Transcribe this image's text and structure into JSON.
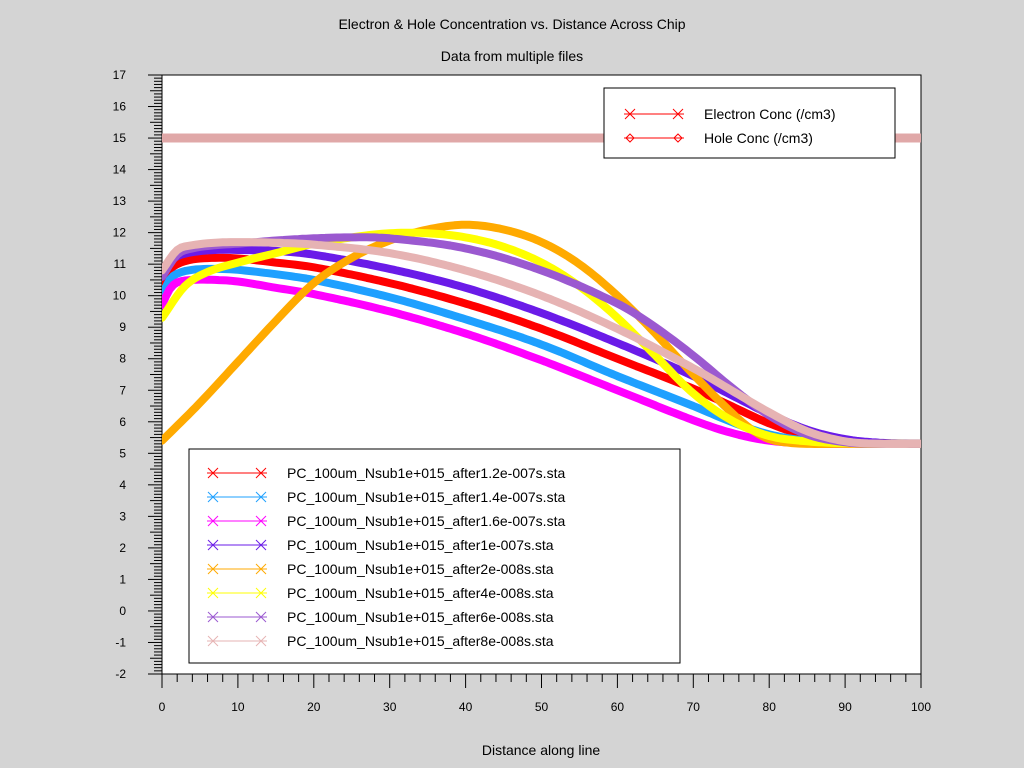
{
  "chart_data": {
    "type": "line",
    "title": "Electron & Hole Concentration vs. Distance Across Chip",
    "subtitle": "Data from multiple files",
    "xlabel": "Distance along line",
    "ylabel": "",
    "xlim": [
      0,
      100
    ],
    "ylim": [
      -2,
      17
    ],
    "x_ticks": [
      "0",
      "10",
      "20",
      "30",
      "40",
      "50",
      "60",
      "70",
      "80",
      "90",
      "100"
    ],
    "y_ticks": [
      "-2",
      "-1",
      "0",
      "1",
      "2",
      "3",
      "4",
      "5",
      "6",
      "7",
      "8",
      "9",
      "10",
      "11",
      "12",
      "13",
      "14",
      "15",
      "16",
      "17"
    ],
    "quantity_legend": [
      {
        "label": "Electron Conc (/cm3)",
        "color": "#ff0000",
        "marker": "x"
      },
      {
        "label": "Hole Conc (/cm3)",
        "color": "#ff0000",
        "marker": "diamond"
      }
    ],
    "hole_conc": {
      "name": "Hole Conc (/cm3)",
      "color": "#e0a8a8",
      "x": [
        0,
        100
      ],
      "y": [
        15,
        15
      ]
    },
    "series": [
      {
        "name": "PC_100um_Nsub1e+015_after1.2e-007s.sta",
        "color": "#ff0000",
        "x": [
          0,
          1,
          2,
          4,
          7,
          10,
          15,
          20,
          30,
          40,
          50,
          60,
          70,
          75,
          80,
          85,
          90,
          95,
          100
        ],
        "y": [
          10.3,
          10.8,
          11.0,
          11.15,
          11.2,
          11.18,
          11.05,
          10.9,
          10.4,
          9.75,
          8.95,
          8.0,
          7.05,
          6.5,
          5.95,
          5.55,
          5.35,
          5.3,
          5.3
        ]
      },
      {
        "name": "PC_100um_Nsub1e+015_after1.4e-007s.sta",
        "color": "#1ea0ff",
        "x": [
          0,
          1,
          2,
          4,
          7,
          10,
          15,
          20,
          30,
          40,
          50,
          60,
          70,
          75,
          80,
          85,
          90,
          95,
          100
        ],
        "y": [
          10.0,
          10.5,
          10.7,
          10.82,
          10.85,
          10.82,
          10.68,
          10.5,
          9.95,
          9.25,
          8.45,
          7.45,
          6.5,
          6.0,
          5.6,
          5.4,
          5.32,
          5.3,
          5.3
        ]
      },
      {
        "name": "PC_100um_Nsub1e+015_after1.6e-007s.sta",
        "color": "#ff00ff",
        "x": [
          0,
          1,
          2,
          4,
          7,
          10,
          15,
          20,
          30,
          40,
          50,
          60,
          70,
          75,
          80,
          85,
          90,
          95,
          100
        ],
        "y": [
          9.7,
          10.2,
          10.42,
          10.5,
          10.5,
          10.45,
          10.25,
          10.05,
          9.5,
          8.8,
          7.95,
          7.0,
          6.05,
          5.65,
          5.4,
          5.32,
          5.3,
          5.3,
          5.3
        ]
      },
      {
        "name": "PC_100um_Nsub1e+015_after1e-007s.sta",
        "color": "#6a1be8",
        "x": [
          0,
          1,
          2,
          4,
          7,
          10,
          15,
          20,
          30,
          40,
          50,
          60,
          70,
          75,
          80,
          85,
          90,
          95,
          100
        ],
        "y": [
          10.6,
          11.05,
          11.25,
          11.38,
          11.45,
          11.45,
          11.42,
          11.3,
          10.85,
          10.25,
          9.45,
          8.5,
          7.45,
          6.85,
          6.25,
          5.75,
          5.45,
          5.33,
          5.3
        ]
      },
      {
        "name": "PC_100um_Nsub1e+015_after2e-008s.sta",
        "color": "#ffaa00",
        "x": [
          0,
          5,
          10,
          15,
          20,
          25,
          30,
          35,
          40,
          45,
          50,
          55,
          60,
          65,
          70,
          75,
          78,
          80,
          82,
          85,
          90,
          95,
          100
        ],
        "y": [
          5.4,
          6.6,
          7.9,
          9.2,
          10.4,
          11.2,
          11.75,
          12.1,
          12.25,
          12.1,
          11.7,
          11.0,
          10.0,
          8.8,
          7.5,
          6.3,
          5.7,
          5.45,
          5.35,
          5.3,
          5.3,
          5.3,
          5.3
        ]
      },
      {
        "name": "PC_100um_Nsub1e+015_after4e-008s.sta",
        "color": "#ffff00",
        "x": [
          0,
          3,
          6,
          10,
          15,
          20,
          25,
          30,
          35,
          40,
          45,
          50,
          55,
          60,
          65,
          70,
          75,
          80,
          85,
          90,
          95,
          100
        ],
        "y": [
          9.3,
          10.3,
          10.75,
          11.05,
          11.35,
          11.65,
          11.85,
          11.98,
          11.98,
          11.85,
          11.55,
          11.05,
          10.3,
          9.3,
          8.1,
          6.9,
          6.05,
          5.55,
          5.38,
          5.32,
          5.3,
          5.3
        ]
      },
      {
        "name": "PC_100um_Nsub1e+015_after6e-008s.sta",
        "color": "#9b59d0",
        "x": [
          0,
          2,
          4,
          7,
          10,
          15,
          20,
          25,
          30,
          40,
          50,
          60,
          65,
          70,
          75,
          80,
          85,
          90,
          95,
          100
        ],
        "y": [
          10.6,
          11.3,
          11.5,
          11.6,
          11.65,
          11.75,
          11.82,
          11.85,
          11.82,
          11.5,
          10.8,
          9.75,
          9.0,
          8.1,
          7.1,
          6.2,
          5.6,
          5.35,
          5.3,
          5.3
        ]
      },
      {
        "name": "PC_100um_Nsub1e+015_after8e-008s.sta",
        "color": "#e6b3b3",
        "x": [
          0,
          2,
          4,
          7,
          10,
          15,
          20,
          30,
          40,
          50,
          60,
          70,
          75,
          80,
          85,
          90,
          95,
          100
        ],
        "y": [
          10.8,
          11.45,
          11.6,
          11.68,
          11.7,
          11.68,
          11.62,
          11.35,
          10.8,
          10.0,
          8.95,
          7.7,
          7.0,
          6.3,
          5.7,
          5.38,
          5.3,
          5.3
        ]
      }
    ]
  }
}
